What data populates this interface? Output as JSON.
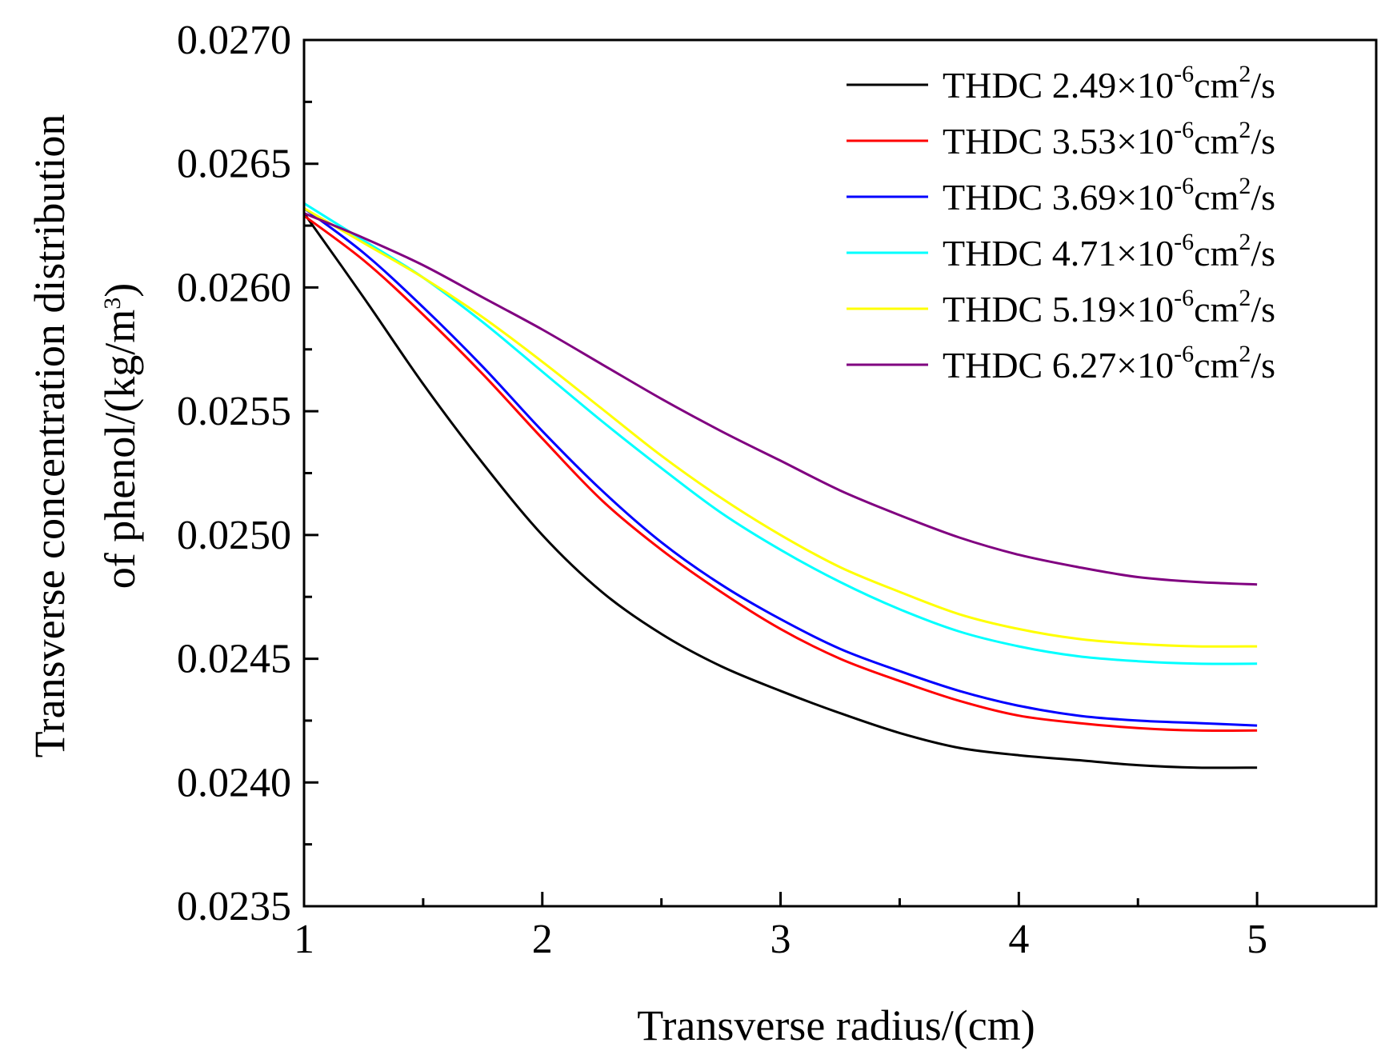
{
  "chart_data": {
    "type": "line",
    "xlabel": "Transverse radius/(cm)",
    "ylabel_line1": "Transverse concentration distribution",
    "ylabel_line2_prefix": "of phenol/(kg/m",
    "ylabel_line2_sup": "3",
    "ylabel_line2_suffix": ")",
    "xlim": [
      1,
      5.5
    ],
    "ylim": [
      0.0235,
      0.027
    ],
    "x_ticks": [
      1,
      2,
      3,
      4,
      5
    ],
    "x_tick_labels": [
      "1",
      "2",
      "3",
      "4",
      "5"
    ],
    "x_minor_ticks": [
      1.5,
      2.5,
      3.5,
      4.5
    ],
    "y_ticks": [
      0.0235,
      0.024,
      0.0245,
      0.025,
      0.0255,
      0.026,
      0.0265,
      0.027
    ],
    "y_tick_labels": [
      "0.0235",
      "0.0240",
      "0.0245",
      "0.0250",
      "0.0255",
      "0.0260",
      "0.0265",
      "0.0270"
    ],
    "y_minor_ticks": [
      0.02375,
      0.02425,
      0.02475,
      0.02525,
      0.02575,
      0.02625,
      0.02675
    ],
    "grid": false,
    "legend_position": "top-right",
    "x": [
      1.0,
      1.25,
      1.5,
      1.75,
      2.0,
      2.25,
      2.5,
      2.75,
      3.0,
      3.25,
      3.5,
      3.75,
      4.0,
      4.25,
      4.5,
      4.75,
      5.0
    ],
    "series": [
      {
        "name": "THDC 2.49×10-6cm2/s",
        "legend_prefix": "THDC 2.49×10",
        "legend_exp": "-6",
        "legend_unit": "cm",
        "legend_unit_exp": "2",
        "legend_suffix": "/s",
        "color": "#000000",
        "values": [
          0.0263,
          0.02596,
          0.02561,
          0.02529,
          0.025,
          0.02477,
          0.0246,
          0.02447,
          0.02437,
          0.02428,
          0.0242,
          0.02414,
          0.02411,
          0.02409,
          0.02407,
          0.02406,
          0.02406
        ]
      },
      {
        "name": "THDC 3.53×10-6cm2/s",
        "legend_prefix": "THDC 3.53×10",
        "legend_exp": "-6",
        "legend_unit": "cm",
        "legend_unit_exp": "2",
        "legend_suffix": "/s",
        "color": "#ff0000",
        "values": [
          0.02629,
          0.02611,
          0.02589,
          0.02565,
          0.02539,
          0.02514,
          0.02494,
          0.02477,
          0.02462,
          0.0245,
          0.02441,
          0.02433,
          0.02427,
          0.02424,
          0.02422,
          0.02421,
          0.02421
        ]
      },
      {
        "name": "THDC 3.69×10-6cm2/s",
        "legend_prefix": "THDC 3.69×10",
        "legend_exp": "-6",
        "legend_unit": "cm",
        "legend_unit_exp": "2",
        "legend_suffix": "/s",
        "color": "#0000ff",
        "values": [
          0.02632,
          0.02614,
          0.02592,
          0.02568,
          0.02542,
          0.02518,
          0.02497,
          0.0248,
          0.02466,
          0.02454,
          0.02445,
          0.02437,
          0.02431,
          0.02427,
          0.02425,
          0.02424,
          0.02423
        ]
      },
      {
        "name": "THDC 4.71×10-6cm2/s",
        "legend_prefix": "THDC 4.71×10",
        "legend_exp": "-6",
        "legend_unit": "cm",
        "legend_unit_exp": "2",
        "legend_suffix": "/s",
        "color": "#00ffff",
        "values": [
          0.02634,
          0.02619,
          0.02604,
          0.02586,
          0.02566,
          0.02546,
          0.02527,
          0.02509,
          0.02494,
          0.02481,
          0.0247,
          0.02461,
          0.02455,
          0.02451,
          0.02449,
          0.02448,
          0.02448
        ]
      },
      {
        "name": "THDC 5.19×10-6cm2/s",
        "legend_prefix": "THDC 5.19×10",
        "legend_exp": "-6",
        "legend_unit": "cm",
        "legend_unit_exp": "2",
        "legend_suffix": "/s",
        "color": "#ffff00",
        "values": [
          0.02632,
          0.02618,
          0.02604,
          0.02588,
          0.0257,
          0.02551,
          0.02532,
          0.02515,
          0.025,
          0.02487,
          0.02477,
          0.02468,
          0.02462,
          0.02458,
          0.02456,
          0.02455,
          0.02455
        ]
      },
      {
        "name": "THDC 6.27×10-6cm2/s",
        "legend_prefix": "THDC 6.27×10",
        "legend_exp": "-6",
        "legend_unit": "cm",
        "legend_unit_exp": "2",
        "legend_suffix": "/s",
        "color": "#800080",
        "values": [
          0.0263,
          0.0262,
          0.02609,
          0.02596,
          0.02583,
          0.02569,
          0.02555,
          0.02542,
          0.0253,
          0.02518,
          0.02508,
          0.02499,
          0.02492,
          0.02487,
          0.02483,
          0.02481,
          0.0248
        ]
      }
    ]
  }
}
